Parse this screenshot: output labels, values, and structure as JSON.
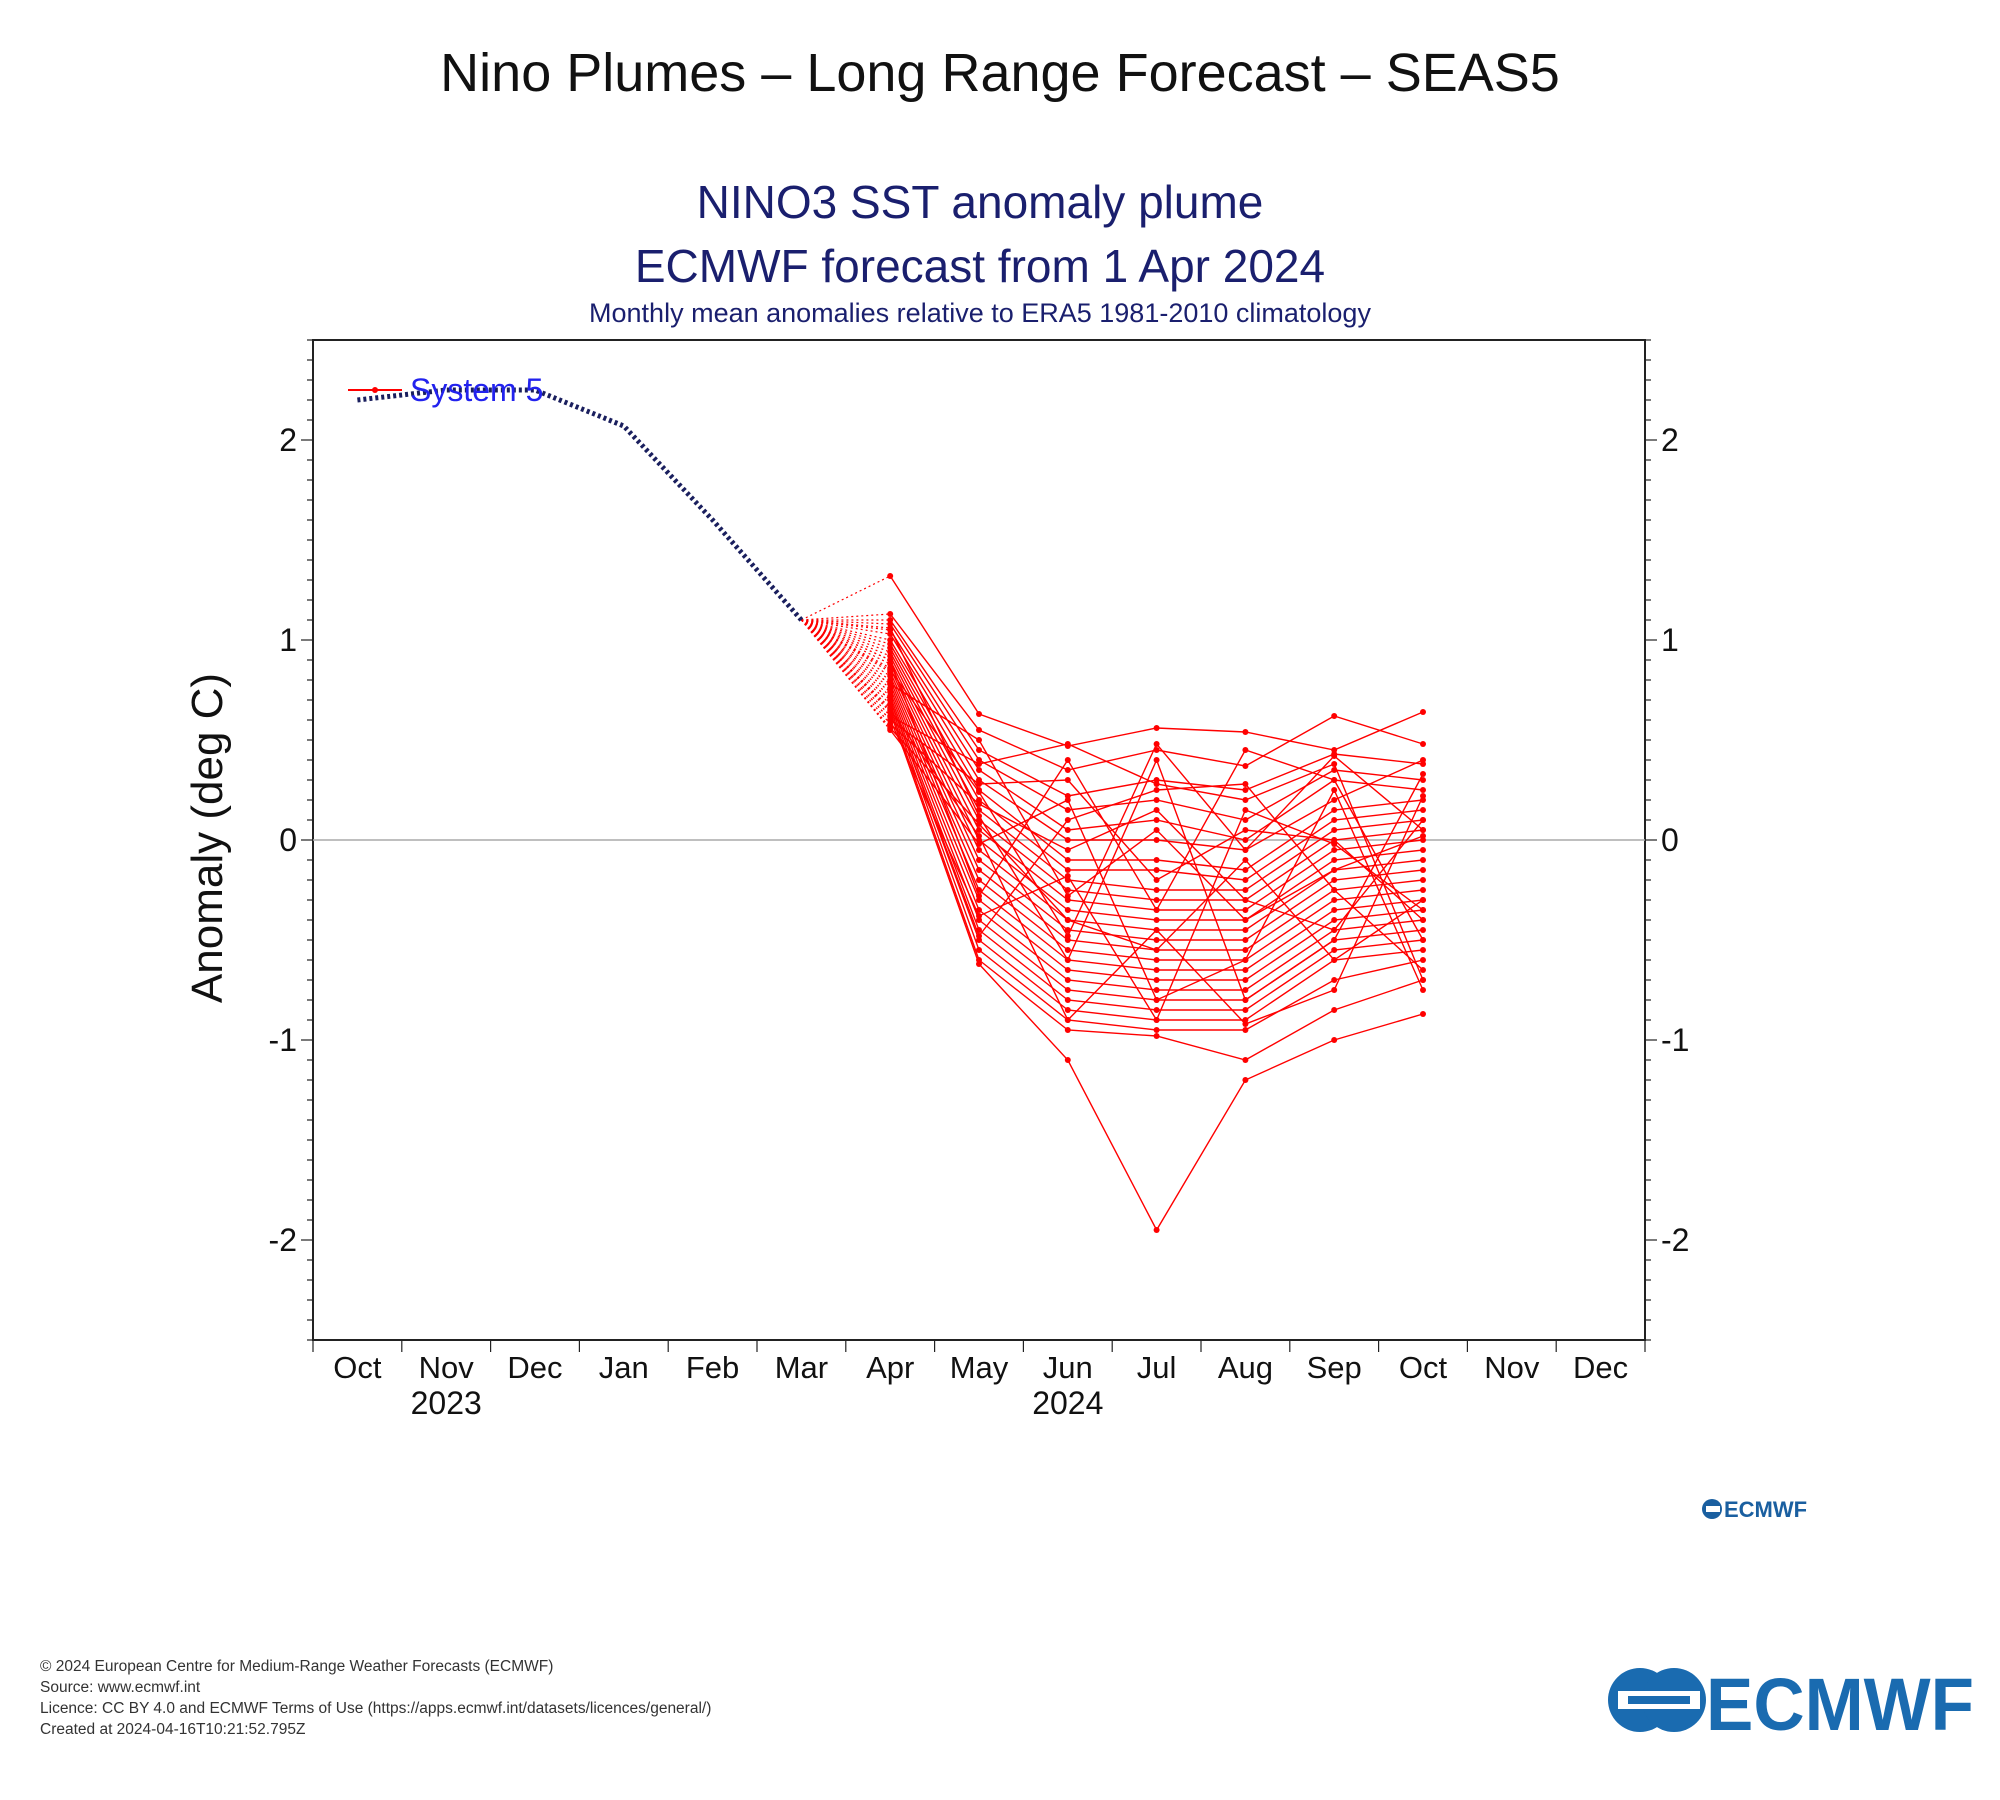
{
  "page_title": "Nino Plumes – Long Range Forecast – SEAS5",
  "footer": {
    "copyright": "© 2024 European Centre for Medium-Range Weather Forecasts (ECMWF)",
    "source": "Source: www.ecmwf.int",
    "licence": "Licence: CC BY 4.0 and ECMWF Terms of Use (https://apps.ecmwf.int/datasets/licences/general/)",
    "created": "Created at 2024-04-16T10:21:52.795Z"
  },
  "logo_text": "ECMWF",
  "colors": {
    "observed": "#1a1f5e",
    "ensemble": "#ff0000",
    "title_text": "#1a1f6e",
    "legend_text": "#2222ee",
    "logo": "#1a6bb0"
  },
  "chart_data": {
    "type": "line",
    "title": "NINO3 SST anomaly plume",
    "title2": "ECMWF forecast from 1 Apr 2024",
    "subtitle": "Monthly mean anomalies relative to ERA5 1981-2010 climatology",
    "ylabel": "Anomaly (deg C)",
    "ylim": [
      -2.5,
      2.5
    ],
    "yticks": [
      -2,
      -1,
      0,
      1,
      2
    ],
    "ytick_labels": [
      "-2",
      "-1",
      "0",
      "1",
      "2"
    ],
    "x_months": [
      "Oct",
      "Nov",
      "Dec",
      "Jan",
      "Feb",
      "Mar",
      "Apr",
      "May",
      "Jun",
      "Jul",
      "Aug",
      "Sep",
      "Oct",
      "Nov",
      "Dec"
    ],
    "x_years": [
      {
        "label": "2023",
        "under_month": "Nov"
      },
      {
        "label": "2024",
        "under_month": "Jun"
      }
    ],
    "legend": {
      "label": "System 5",
      "position": "top-left"
    },
    "zero_line": true,
    "grid": false,
    "observed": {
      "x": [
        "2023-10",
        "2023-11",
        "2023-12",
        "2024-01",
        "2024-02",
        "2024-03"
      ],
      "y": [
        2.2,
        2.25,
        2.25,
        2.07,
        1.6,
        1.1
      ]
    },
    "ensemble_x": [
      "2024-04",
      "2024-05",
      "2024-06",
      "2024-07",
      "2024-08",
      "2024-09",
      "2024-10"
    ],
    "ensemble": [
      [
        1.32,
        0.63,
        0.47,
        0.56,
        0.54,
        0.45,
        0.64
      ],
      [
        1.13,
        0.55,
        0.35,
        0.45,
        0.37,
        0.62,
        0.48
      ],
      [
        1.1,
        0.45,
        0.22,
        0.3,
        0.25,
        0.43,
        0.38
      ],
      [
        1.08,
        0.4,
        0.15,
        0.2,
        0.1,
        0.35,
        0.3
      ],
      [
        1.05,
        0.35,
        0.05,
        0.1,
        0.0,
        0.3,
        0.25
      ],
      [
        1.03,
        0.3,
        0.0,
        0.0,
        -0.05,
        0.2,
        0.4
      ],
      [
        1.0,
        0.25,
        -0.1,
        -0.1,
        -0.15,
        0.15,
        0.2
      ],
      [
        0.98,
        0.2,
        -0.15,
        -0.15,
        -0.2,
        0.1,
        0.15
      ],
      [
        0.96,
        0.15,
        -0.2,
        -0.25,
        -0.25,
        0.05,
        0.1
      ],
      [
        0.94,
        0.1,
        -0.25,
        -0.3,
        -0.3,
        0.0,
        0.05
      ],
      [
        0.92,
        0.05,
        -0.3,
        -0.35,
        -0.35,
        -0.05,
        0.0
      ],
      [
        0.9,
        0.0,
        -0.35,
        -0.4,
        -0.4,
        -0.1,
        -0.05
      ],
      [
        0.88,
        -0.05,
        -0.4,
        -0.45,
        -0.45,
        -0.15,
        -0.1
      ],
      [
        0.86,
        -0.1,
        -0.45,
        -0.5,
        -0.5,
        -0.2,
        -0.15
      ],
      [
        0.84,
        -0.15,
        -0.5,
        -0.55,
        -0.55,
        -0.25,
        -0.2
      ],
      [
        0.82,
        -0.2,
        -0.55,
        -0.6,
        -0.6,
        -0.3,
        -0.25
      ],
      [
        0.8,
        -0.25,
        -0.6,
        -0.65,
        -0.65,
        -0.35,
        -0.3
      ],
      [
        0.78,
        -0.3,
        -0.65,
        -0.7,
        -0.7,
        -0.4,
        -0.35
      ],
      [
        0.76,
        -0.35,
        -0.7,
        -0.75,
        -0.75,
        -0.45,
        -0.4
      ],
      [
        0.74,
        -0.4,
        -0.75,
        -0.8,
        -0.8,
        -0.5,
        -0.45
      ],
      [
        0.72,
        -0.45,
        -0.8,
        -0.85,
        -0.85,
        -0.55,
        -0.5
      ],
      [
        0.7,
        -0.5,
        -0.85,
        -0.9,
        -0.9,
        -0.6,
        -0.55
      ],
      [
        0.68,
        -0.55,
        -0.9,
        -0.95,
        -0.95,
        -0.7,
        -0.6
      ],
      [
        0.66,
        -0.6,
        -0.95,
        -0.98,
        -1.1,
        -0.85,
        -0.7
      ],
      [
        0.64,
        -0.62,
        -1.1,
        -1.95,
        -1.2,
        -1.0,
        -0.87
      ],
      [
        0.62,
        0.38,
        0.48,
        0.28,
        0.2,
        0.38,
        -0.7
      ],
      [
        0.6,
        0.28,
        0.3,
        -0.2,
        0.05,
        0.0,
        -0.4
      ],
      [
        0.58,
        0.18,
        -0.05,
        0.15,
        -0.3,
        -0.45,
        0.1
      ],
      [
        0.56,
        0.08,
        -0.4,
        -0.55,
        -0.1,
        -0.6,
        -0.3
      ],
      [
        0.55,
        -0.02,
        0.2,
        -0.8,
        -0.6,
        0.25,
        -0.75
      ],
      [
        1.06,
        0.12,
        -0.6,
        0.4,
        -0.8,
        -0.5,
        0.33
      ],
      [
        0.9,
        -0.28,
        0.4,
        -0.35,
        0.45,
        0.3,
        -0.5
      ],
      [
        0.78,
        0.5,
        -0.28,
        0.05,
        -0.4,
        -0.15,
        0.02
      ],
      [
        0.7,
        -0.48,
        0.1,
        0.25,
        0.28,
        -0.25,
        -0.65
      ],
      [
        0.65,
        0.02,
        -0.9,
        -0.45,
        -0.92,
        -0.75,
        0.22
      ],
      [
        0.6,
        -0.38,
        -0.18,
        -0.9,
        0.15,
        -0.02,
        -0.35
      ],
      [
        0.85,
        0.24,
        -0.48,
        0.48,
        -0.05,
        0.42,
        0.05
      ]
    ]
  }
}
